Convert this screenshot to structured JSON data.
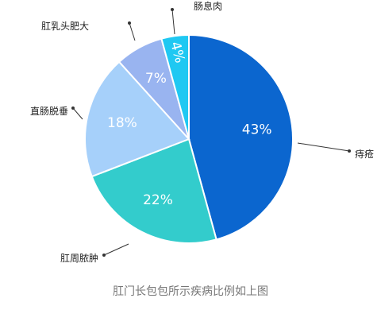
{
  "chart_data": {
    "type": "pie",
    "caption": "肛门长包包所示疾病比例如上图",
    "slices": [
      {
        "label": "痔疮",
        "value": 43,
        "display": "43%",
        "color": "#0B66CF"
      },
      {
        "label": "肛周脓肿",
        "value": 22,
        "display": "22%",
        "color": "#33CCCC"
      },
      {
        "label": "直肠脱垂",
        "value": 18,
        "display": "18%",
        "color": "#A6D0FA"
      },
      {
        "label": "肛乳头肥大",
        "value": 7,
        "display": "7%",
        "color": "#99B4F0"
      },
      {
        "label": "肠息肉",
        "value": 4,
        "display": "4%",
        "color": "#1FC8F2"
      }
    ]
  }
}
